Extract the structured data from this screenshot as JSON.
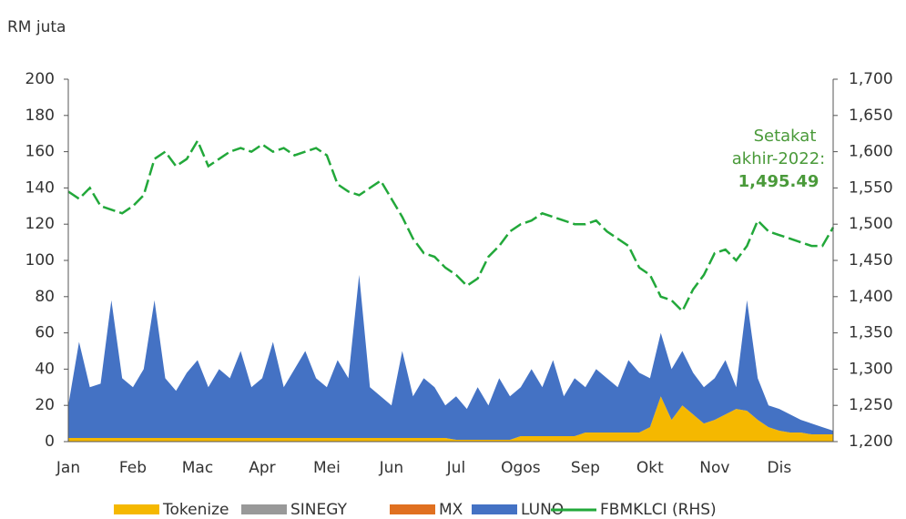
{
  "chart_data": {
    "type": "stacked-area-line",
    "y_label": "RM juta",
    "categories": [
      "Jan",
      null,
      null,
      null,
      null,
      null,
      "Feb",
      null,
      null,
      null,
      null,
      null,
      "Mac",
      null,
      null,
      null,
      null,
      null,
      "Apr",
      null,
      null,
      null,
      null,
      null,
      "Mei",
      null,
      null,
      null,
      null,
      null,
      "Jun",
      null,
      null,
      null,
      null,
      null,
      "Jul",
      null,
      null,
      null,
      null,
      null,
      "Ogos",
      null,
      null,
      null,
      null,
      null,
      "Sep",
      null,
      null,
      null,
      null,
      null,
      "Okt",
      null,
      null,
      null,
      null,
      null,
      "Nov",
      null,
      null,
      null,
      null,
      null,
      "Dis",
      null,
      null,
      null,
      null,
      null
    ],
    "series": [
      {
        "name": "Tokenize",
        "color": "#f5b800",
        "values": [
          2,
          2,
          2,
          2,
          2,
          2,
          2,
          2,
          2,
          2,
          2,
          2,
          2,
          2,
          2,
          2,
          2,
          2,
          2,
          2,
          2,
          2,
          2,
          2,
          2,
          2,
          2,
          2,
          2,
          2,
          2,
          2,
          2,
          2,
          2,
          2,
          1,
          1,
          1,
          1,
          1,
          1,
          3,
          3,
          3,
          3,
          3,
          3,
          5,
          5,
          5,
          5,
          5,
          5,
          8,
          25,
          12,
          20,
          15,
          10,
          12,
          15,
          18,
          17,
          12,
          8,
          6,
          5,
          5,
          4,
          4,
          4
        ]
      },
      {
        "name": "SINEGY",
        "color": "#999999",
        "values": [
          0,
          0,
          0,
          0,
          0,
          0,
          0,
          0,
          0,
          0,
          0,
          0,
          0,
          0,
          0,
          0,
          0,
          0,
          0,
          0,
          0,
          0,
          0,
          0,
          0,
          0,
          0,
          0,
          0,
          0,
          0,
          0,
          0,
          0,
          0,
          0,
          0,
          0,
          0,
          0,
          0,
          0,
          0,
          0,
          0,
          0,
          0,
          0,
          0,
          0,
          0,
          0,
          0,
          0,
          0,
          0,
          0,
          0,
          0,
          0,
          0,
          0,
          0,
          0,
          0,
          0,
          0,
          0,
          0,
          0,
          0,
          0
        ]
      },
      {
        "name": "MX",
        "color": "#e07020",
        "values": [
          0,
          0,
          0,
          0,
          0,
          0,
          0,
          0,
          0,
          0,
          0,
          0,
          0,
          0,
          0,
          0,
          0,
          0,
          0,
          0,
          0,
          0,
          0,
          0,
          0,
          0,
          0,
          0,
          0,
          0,
          0,
          0,
          0,
          0,
          0,
          0,
          0,
          0,
          0,
          0,
          0,
          0,
          0,
          0,
          0,
          0,
          0,
          0,
          0,
          0,
          0,
          0,
          0,
          0,
          0,
          0,
          0,
          0,
          0,
          0,
          0,
          0,
          0,
          0,
          0,
          0,
          0,
          0,
          0,
          0,
          0,
          0
        ]
      },
      {
        "name": "LUNO",
        "color": "#4472c4",
        "values": [
          18,
          53,
          28,
          30,
          76,
          33,
          28,
          38,
          76,
          33,
          26,
          36,
          43,
          28,
          38,
          33,
          48,
          28,
          33,
          53,
          28,
          38,
          48,
          33,
          28,
          43,
          33,
          90,
          28,
          23,
          18,
          48,
          23,
          33,
          28,
          18,
          24,
          17,
          29,
          19,
          34,
          24,
          27,
          37,
          27,
          42,
          22,
          32,
          25,
          35,
          30,
          25,
          40,
          33,
          27,
          35,
          28,
          30,
          23,
          20,
          23,
          30,
          12,
          61,
          23,
          12,
          12,
          10,
          7,
          6,
          4,
          2
        ]
      },
      {
        "name": "FBMKLCI (RHS)",
        "color": "#22a83a",
        "axis": "y2",
        "values": [
          1545,
          1535,
          1550,
          1525,
          1520,
          1515,
          1525,
          1540,
          1590,
          1600,
          1580,
          1590,
          1615,
          1580,
          1590,
          1600,
          1605,
          1600,
          1610,
          1600,
          1605,
          1595,
          1600,
          1605,
          1595,
          1555,
          1545,
          1540,
          1550,
          1560,
          1535,
          1510,
          1480,
          1460,
          1455,
          1440,
          1430,
          1415,
          1425,
          1455,
          1470,
          1490,
          1500,
          1505,
          1515,
          1510,
          1505,
          1500,
          1500,
          1505,
          1490,
          1480,
          1470,
          1440,
          1430,
          1400,
          1395,
          1380,
          1410,
          1430,
          1460,
          1465,
          1450,
          1470,
          1505,
          1490,
          1485,
          1480,
          1475,
          1470,
          1470,
          1495.49
        ]
      }
    ],
    "ylim": [
      0,
      200
    ],
    "yticks": [
      0,
      20,
      40,
      60,
      80,
      100,
      120,
      140,
      160,
      180,
      200
    ],
    "y2lim": [
      1200,
      1700
    ],
    "y2ticks": [
      {
        "value": 1200,
        "label": "1,200"
      },
      {
        "value": 1250,
        "label": "1,250"
      },
      {
        "value": 1300,
        "label": "1,300"
      },
      {
        "value": 1350,
        "label": "1,350"
      },
      {
        "value": 1400,
        "label": "1,400"
      },
      {
        "value": 1450,
        "label": "1,450"
      },
      {
        "value": 1500,
        "label": "1,500"
      },
      {
        "value": 1550,
        "label": "1,550"
      },
      {
        "value": 1600,
        "label": "1,600"
      },
      {
        "value": 1650,
        "label": "1,650"
      },
      {
        "value": 1700,
        "label": "1,700"
      }
    ],
    "annotations": [
      "Setakat",
      "akhir-2022:",
      "1,495.49"
    ],
    "legend": "bottom"
  }
}
